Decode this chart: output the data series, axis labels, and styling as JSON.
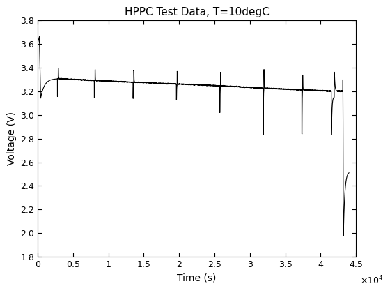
{
  "title": "HPPC Test Data, T=10degC",
  "xlabel": "Time (s)",
  "ylabel": "Voltage (V)",
  "xlim": [
    0,
    45000
  ],
  "ylim": [
    1.8,
    3.8
  ],
  "line_color": "#000000",
  "line_width": 0.8,
  "figsize": [
    5.6,
    4.2
  ],
  "dpi": 100,
  "xticks": [
    0,
    5000,
    10000,
    15000,
    20000,
    25000,
    30000,
    35000,
    40000,
    45000
  ],
  "xtick_labels": [
    "0",
    "0.5",
    "1",
    "1.5",
    "2",
    "2.5",
    "3",
    "3.5",
    "4",
    "4.5"
  ],
  "yticks": [
    1.8,
    2.0,
    2.2,
    2.4,
    2.6,
    2.8,
    3.0,
    3.2,
    3.4,
    3.6,
    3.8
  ]
}
